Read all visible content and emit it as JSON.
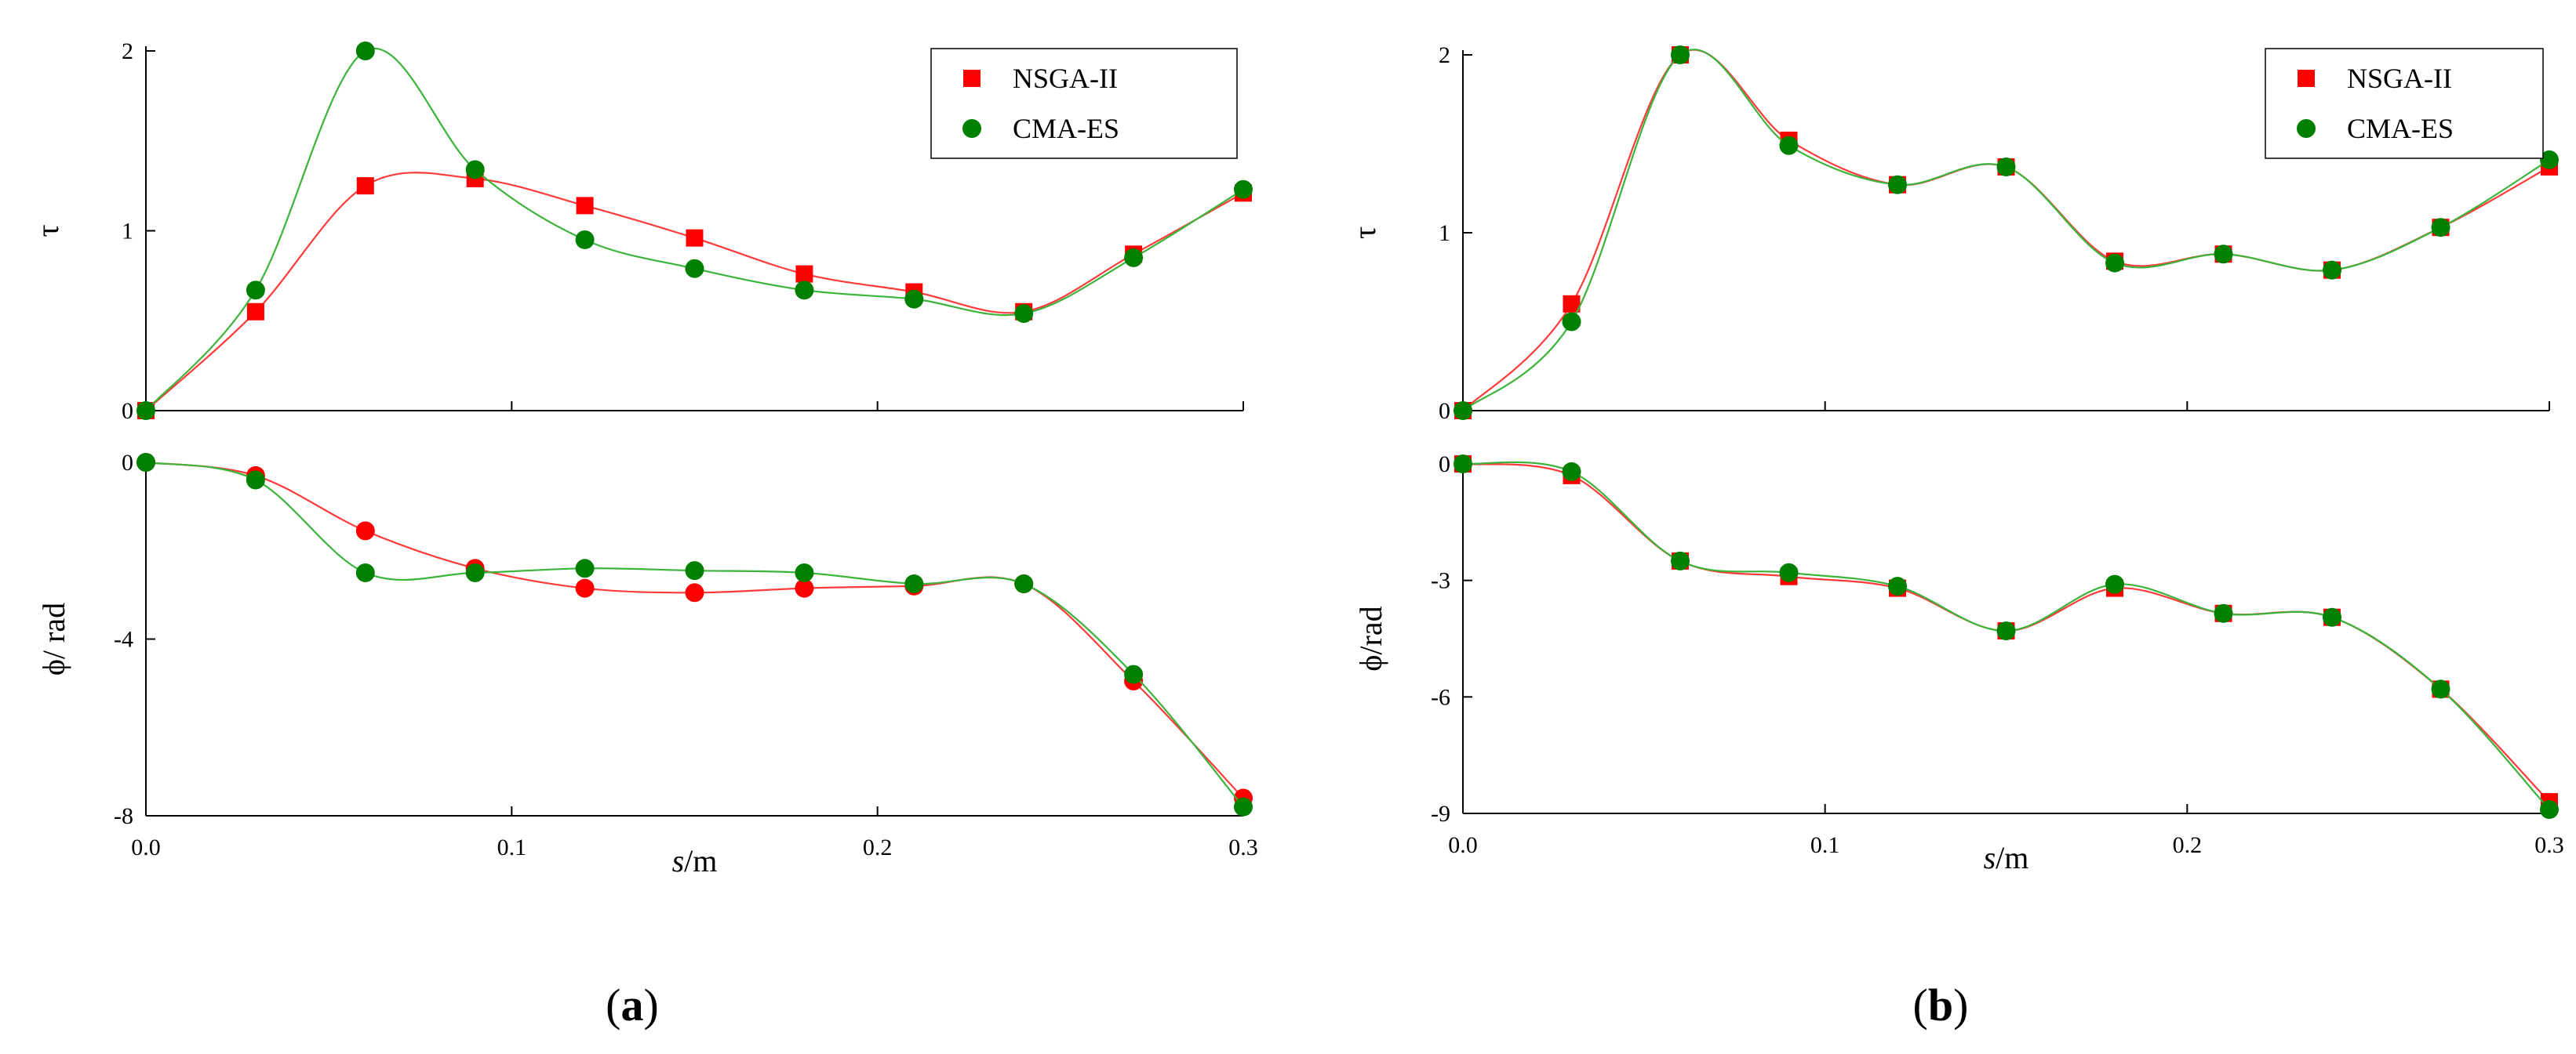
{
  "colors": {
    "nsga": "#ff0000",
    "cma": "#008000",
    "nsga_line": "#ff3a3a",
    "cma_line": "#3cb43c",
    "axis": "#000000"
  },
  "chart_data": [
    {
      "id": "a",
      "caption": "(a)",
      "caption_prefix": "(",
      "caption_letter": "a",
      "caption_suffix": ")",
      "legend": {
        "placement": "top-right",
        "entries": [
          "NSGA-II",
          "CMA-ES"
        ]
      },
      "xlabel_italic": "s",
      "xlabel_rest": "/m",
      "x_ticks": [
        "0.0",
        "0.1",
        "0.2",
        "0.3"
      ],
      "x_tick_values": [
        0.0,
        0.1,
        0.2,
        0.3
      ],
      "xlim": [
        0,
        0.3
      ],
      "subplots": [
        {
          "type": "line",
          "ylabel": "τ",
          "ylim": [
            0,
            2
          ],
          "y_ticks": [
            "0",
            "1",
            "2"
          ],
          "y_tick_values": [
            0,
            1,
            2
          ],
          "marker_nsga": "square",
          "marker_cma": "circle",
          "series": [
            {
              "name": "NSGA-II",
              "x": [
                0,
                0.03,
                0.06,
                0.09,
                0.12,
                0.15,
                0.18,
                0.21,
                0.24,
                0.27,
                0.3
              ],
              "y": [
                0,
                0.55,
                1.25,
                1.29,
                1.14,
                0.96,
                0.76,
                0.66,
                0.55,
                0.87,
                1.21
              ]
            },
            {
              "name": "CMA-ES",
              "x": [
                0,
                0.03,
                0.06,
                0.09,
                0.12,
                0.15,
                0.18,
                0.21,
                0.24,
                0.27,
                0.3
              ],
              "y": [
                0,
                0.67,
                2.0,
                1.34,
                0.95,
                0.79,
                0.67,
                0.62,
                0.54,
                0.85,
                1.23
              ]
            }
          ]
        },
        {
          "type": "line",
          "ylabel": "ϕ/ rad",
          "ylim": [
            -8,
            0
          ],
          "y_ticks": [
            "0",
            "-4",
            "-8"
          ],
          "y_tick_values": [
            0,
            -4,
            -8
          ],
          "marker_nsga": "circle",
          "marker_cma": "circle",
          "series": [
            {
              "name": "NSGA-II",
              "x": [
                0,
                0.03,
                0.06,
                0.09,
                0.12,
                0.15,
                0.18,
                0.21,
                0.24,
                0.27,
                0.3
              ],
              "y": [
                0,
                -0.3,
                -1.55,
                -2.4,
                -2.85,
                -2.95,
                -2.85,
                -2.8,
                -2.75,
                -4.95,
                -7.6
              ]
            },
            {
              "name": "CMA-ES",
              "x": [
                0,
                0.03,
                0.06,
                0.09,
                0.12,
                0.15,
                0.18,
                0.21,
                0.24,
                0.27,
                0.3
              ],
              "y": [
                0,
                -0.4,
                -2.5,
                -2.5,
                -2.4,
                -2.45,
                -2.5,
                -2.75,
                -2.75,
                -4.8,
                -7.8
              ]
            }
          ]
        }
      ]
    },
    {
      "id": "b",
      "caption": "(b)",
      "caption_prefix": "(",
      "caption_letter": "b",
      "caption_suffix": ")",
      "legend": {
        "placement": "top-right",
        "entries": [
          "NSGA-II",
          "CMA-ES"
        ]
      },
      "xlabel_italic": "s",
      "xlabel_rest": "/m",
      "x_ticks": [
        "0.0",
        "0.1",
        "0.2",
        "0.3"
      ],
      "x_tick_values": [
        0.0,
        0.1,
        0.2,
        0.3
      ],
      "xlim": [
        0,
        0.3
      ],
      "subplots": [
        {
          "type": "line",
          "ylabel": "τ",
          "ylim": [
            0,
            2
          ],
          "y_ticks": [
            "0",
            "1",
            "2"
          ],
          "y_tick_values": [
            0,
            1,
            2
          ],
          "marker_nsga": "square",
          "marker_cma": "circle",
          "series": [
            {
              "name": "NSGA-II",
              "x": [
                0,
                0.03,
                0.06,
                0.09,
                0.12,
                0.15,
                0.18,
                0.21,
                0.24,
                0.27,
                0.3
              ],
              "y": [
                0,
                0.6,
                2.0,
                1.52,
                1.27,
                1.37,
                0.84,
                0.88,
                0.79,
                1.03,
                1.37
              ]
            },
            {
              "name": "CMA-ES",
              "x": [
                0,
                0.03,
                0.06,
                0.09,
                0.12,
                0.15,
                0.18,
                0.21,
                0.24,
                0.27,
                0.3
              ],
              "y": [
                0,
                0.5,
                2.0,
                1.49,
                1.27,
                1.37,
                0.83,
                0.88,
                0.79,
                1.03,
                1.41
              ]
            }
          ]
        },
        {
          "type": "line",
          "ylabel": "ϕ/rad",
          "ylim": [
            -9,
            0
          ],
          "y_ticks": [
            "0",
            "-3",
            "-6",
            "-9"
          ],
          "y_tick_values": [
            0,
            -3,
            -6,
            -9
          ],
          "marker_nsga": "square",
          "marker_cma": "circle",
          "series": [
            {
              "name": "NSGA-II",
              "x": [
                0,
                0.03,
                0.06,
                0.09,
                0.12,
                0.15,
                0.18,
                0.21,
                0.24,
                0.27,
                0.3
              ],
              "y": [
                0,
                -0.3,
                -2.5,
                -2.9,
                -3.2,
                -4.3,
                -3.2,
                -3.85,
                -3.95,
                -5.8,
                -8.7
              ]
            },
            {
              "name": "CMA-ES",
              "x": [
                0,
                0.03,
                0.06,
                0.09,
                0.12,
                0.15,
                0.18,
                0.21,
                0.24,
                0.27,
                0.3
              ],
              "y": [
                0,
                -0.2,
                -2.5,
                -2.8,
                -3.15,
                -4.3,
                -3.1,
                -3.85,
                -3.95,
                -5.8,
                -8.9
              ]
            }
          ]
        }
      ]
    }
  ]
}
